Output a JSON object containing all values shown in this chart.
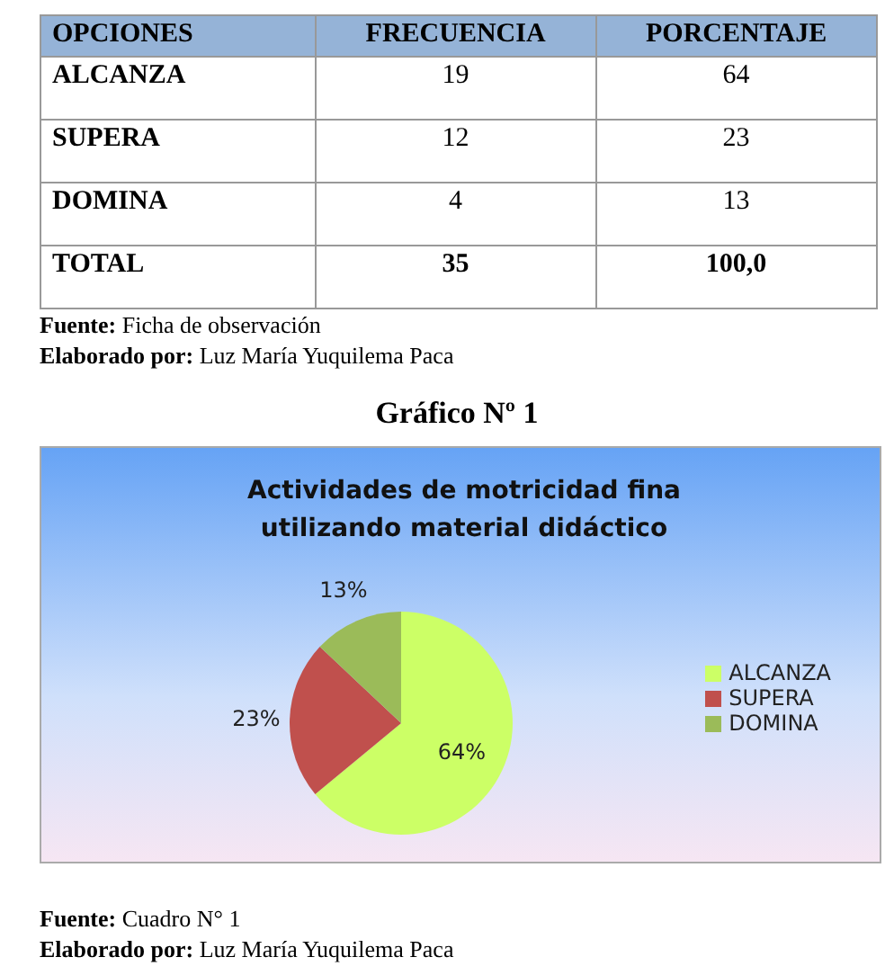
{
  "chart_data": [
    {
      "type": "other",
      "xlabel": "OPCIONES",
      "categories": [
        "ALCANZA",
        "SUPERA",
        "DOMINA"
      ],
      "series": [
        {
          "name": "FRECUENCIA",
          "values": [
            19,
            12,
            4
          ]
        },
        {
          "name": "PORCENTAJE",
          "values": [
            64,
            23,
            13
          ]
        }
      ],
      "data_labels": true,
      "totals": [
        "TOTAL",
        "35",
        "100,0"
      ],
      "annotations": [
        "Fuente: Ficha de observación",
        "Elaborado por: Luz María Yuquilema Paca"
      ]
    },
    {
      "type": "pie",
      "title": "Gráfico Nº 1",
      "subtitle": "Actividades de motricidad fina utilizando material didáctico",
      "categories": [
        "ALCANZA",
        "SUPERA",
        "DOMINA"
      ],
      "values": [
        64,
        23,
        13
      ],
      "value_labels": [
        "64%",
        "23%",
        "13%"
      ],
      "colors": [
        "#ccff66",
        "#c0504d",
        "#9bbb59"
      ],
      "legend": "right",
      "annotations": [
        "Fuente: Cuadro N° 1",
        "Elaborado por: Luz María Yuquilema Paca"
      ]
    }
  ]
}
